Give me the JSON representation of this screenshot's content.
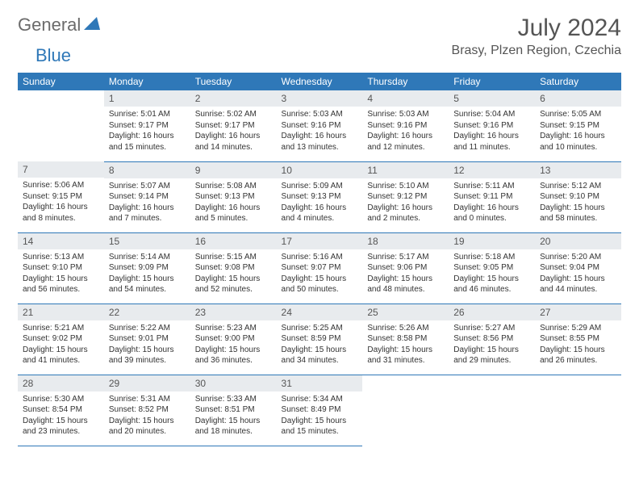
{
  "brand": {
    "part1": "General",
    "part2": "Blue"
  },
  "title": "July 2024",
  "location": "Brasy, Plzen Region, Czechia",
  "colors": {
    "header_bg": "#2f78b8",
    "header_text": "#ffffff",
    "daynum_bg": "#e8ebee",
    "border": "#2f78b8",
    "text": "#333333",
    "title_text": "#555555"
  },
  "week_days": [
    "Sunday",
    "Monday",
    "Tuesday",
    "Wednesday",
    "Thursday",
    "Friday",
    "Saturday"
  ],
  "weeks": [
    [
      null,
      {
        "n": "1",
        "sr": "5:01 AM",
        "ss": "9:17 PM",
        "dl": "16 hours and 15 minutes."
      },
      {
        "n": "2",
        "sr": "5:02 AM",
        "ss": "9:17 PM",
        "dl": "16 hours and 14 minutes."
      },
      {
        "n": "3",
        "sr": "5:03 AM",
        "ss": "9:16 PM",
        "dl": "16 hours and 13 minutes."
      },
      {
        "n": "4",
        "sr": "5:03 AM",
        "ss": "9:16 PM",
        "dl": "16 hours and 12 minutes."
      },
      {
        "n": "5",
        "sr": "5:04 AM",
        "ss": "9:16 PM",
        "dl": "16 hours and 11 minutes."
      },
      {
        "n": "6",
        "sr": "5:05 AM",
        "ss": "9:15 PM",
        "dl": "16 hours and 10 minutes."
      }
    ],
    [
      {
        "n": "7",
        "sr": "5:06 AM",
        "ss": "9:15 PM",
        "dl": "16 hours and 8 minutes."
      },
      {
        "n": "8",
        "sr": "5:07 AM",
        "ss": "9:14 PM",
        "dl": "16 hours and 7 minutes."
      },
      {
        "n": "9",
        "sr": "5:08 AM",
        "ss": "9:13 PM",
        "dl": "16 hours and 5 minutes."
      },
      {
        "n": "10",
        "sr": "5:09 AM",
        "ss": "9:13 PM",
        "dl": "16 hours and 4 minutes."
      },
      {
        "n": "11",
        "sr": "5:10 AM",
        "ss": "9:12 PM",
        "dl": "16 hours and 2 minutes."
      },
      {
        "n": "12",
        "sr": "5:11 AM",
        "ss": "9:11 PM",
        "dl": "16 hours and 0 minutes."
      },
      {
        "n": "13",
        "sr": "5:12 AM",
        "ss": "9:10 PM",
        "dl": "15 hours and 58 minutes."
      }
    ],
    [
      {
        "n": "14",
        "sr": "5:13 AM",
        "ss": "9:10 PM",
        "dl": "15 hours and 56 minutes."
      },
      {
        "n": "15",
        "sr": "5:14 AM",
        "ss": "9:09 PM",
        "dl": "15 hours and 54 minutes."
      },
      {
        "n": "16",
        "sr": "5:15 AM",
        "ss": "9:08 PM",
        "dl": "15 hours and 52 minutes."
      },
      {
        "n": "17",
        "sr": "5:16 AM",
        "ss": "9:07 PM",
        "dl": "15 hours and 50 minutes."
      },
      {
        "n": "18",
        "sr": "5:17 AM",
        "ss": "9:06 PM",
        "dl": "15 hours and 48 minutes."
      },
      {
        "n": "19",
        "sr": "5:18 AM",
        "ss": "9:05 PM",
        "dl": "15 hours and 46 minutes."
      },
      {
        "n": "20",
        "sr": "5:20 AM",
        "ss": "9:04 PM",
        "dl": "15 hours and 44 minutes."
      }
    ],
    [
      {
        "n": "21",
        "sr": "5:21 AM",
        "ss": "9:02 PM",
        "dl": "15 hours and 41 minutes."
      },
      {
        "n": "22",
        "sr": "5:22 AM",
        "ss": "9:01 PM",
        "dl": "15 hours and 39 minutes."
      },
      {
        "n": "23",
        "sr": "5:23 AM",
        "ss": "9:00 PM",
        "dl": "15 hours and 36 minutes."
      },
      {
        "n": "24",
        "sr": "5:25 AM",
        "ss": "8:59 PM",
        "dl": "15 hours and 34 minutes."
      },
      {
        "n": "25",
        "sr": "5:26 AM",
        "ss": "8:58 PM",
        "dl": "15 hours and 31 minutes."
      },
      {
        "n": "26",
        "sr": "5:27 AM",
        "ss": "8:56 PM",
        "dl": "15 hours and 29 minutes."
      },
      {
        "n": "27",
        "sr": "5:29 AM",
        "ss": "8:55 PM",
        "dl": "15 hours and 26 minutes."
      }
    ],
    [
      {
        "n": "28",
        "sr": "5:30 AM",
        "ss": "8:54 PM",
        "dl": "15 hours and 23 minutes."
      },
      {
        "n": "29",
        "sr": "5:31 AM",
        "ss": "8:52 PM",
        "dl": "15 hours and 20 minutes."
      },
      {
        "n": "30",
        "sr": "5:33 AM",
        "ss": "8:51 PM",
        "dl": "15 hours and 18 minutes."
      },
      {
        "n": "31",
        "sr": "5:34 AM",
        "ss": "8:49 PM",
        "dl": "15 hours and 15 minutes."
      },
      null,
      null,
      null
    ]
  ],
  "labels": {
    "sunrise": "Sunrise:",
    "sunset": "Sunset:",
    "daylight": "Daylight:"
  }
}
